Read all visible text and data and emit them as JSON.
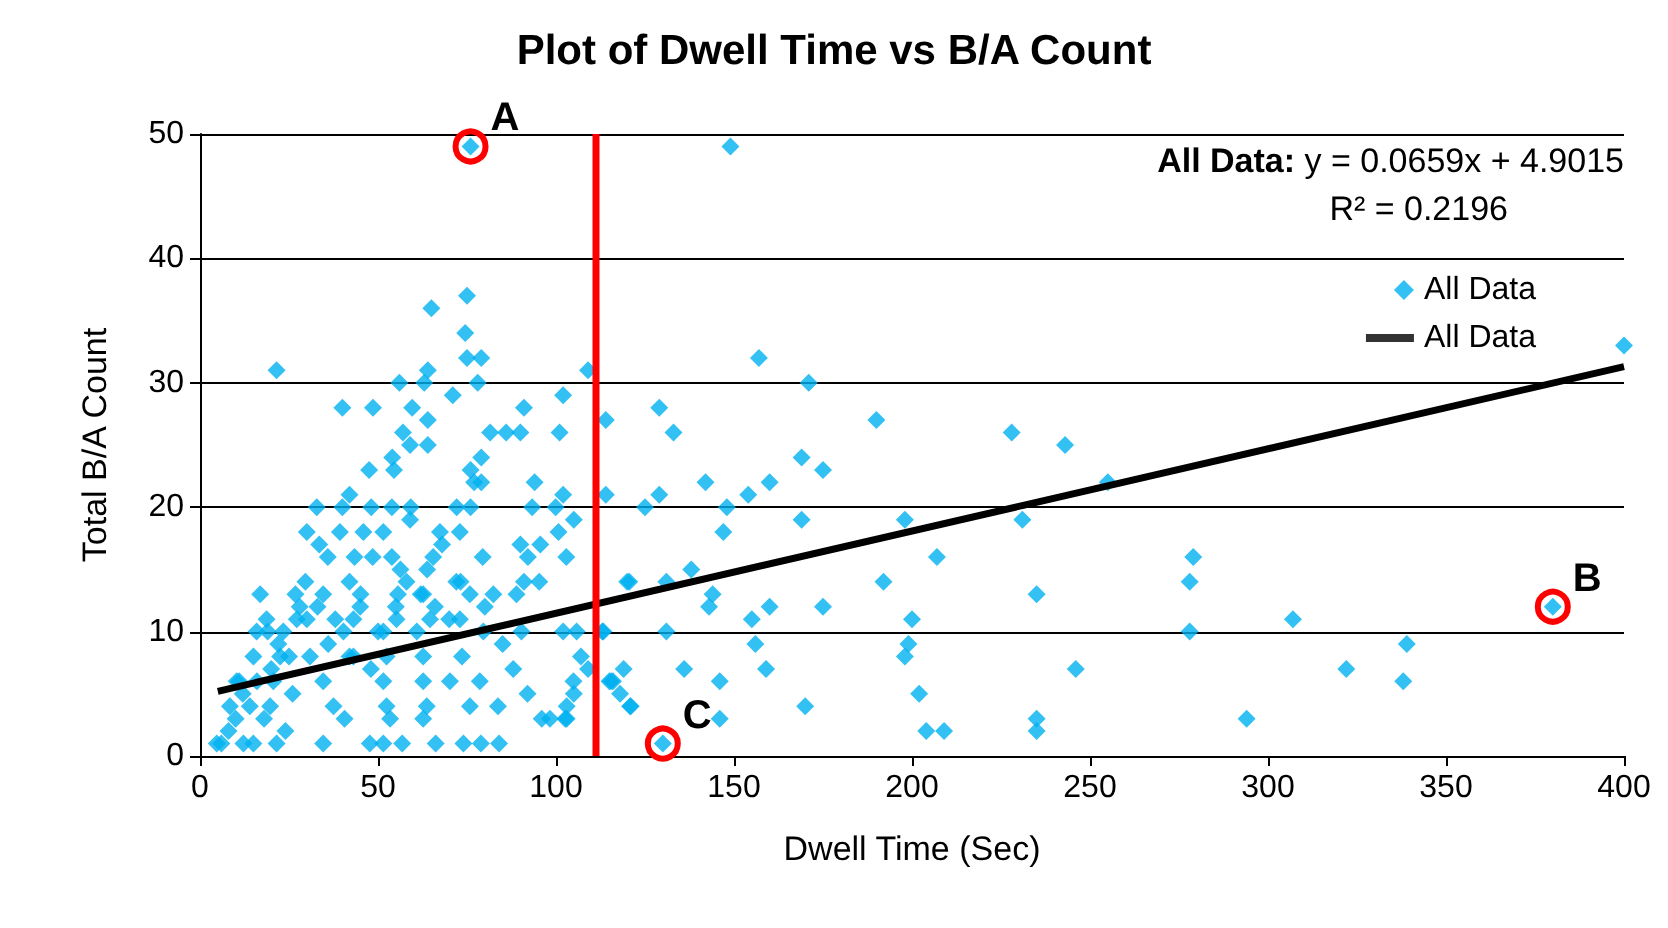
{
  "chart_data": {
    "type": "scatter",
    "title": "Plot of Dwell Time vs B/A Count",
    "xlabel": "Dwell Time (Sec)",
    "ylabel": "Total B/A Count",
    "xlim": [
      0,
      400
    ],
    "xticks": [
      0,
      50,
      100,
      150,
      200,
      250,
      300,
      350,
      400
    ],
    "ylim": [
      0,
      50
    ],
    "yticks": [
      0,
      10,
      20,
      30,
      40,
      50
    ],
    "grid": "y",
    "legend": "top right",
    "annotations": [
      {
        "text": "A",
        "x": 76,
        "y": 49
      },
      {
        "text": "B",
        "x": 380,
        "y": 12
      },
      {
        "text": "C",
        "x": 130,
        "y": 1
      },
      "All Data: y = 0.0659x + 4.9015",
      "R² = 0.2196"
    ],
    "ref_lines": [
      {
        "axis": "x",
        "value": 111,
        "color": "#ff0000"
      }
    ],
    "series": [
      {
        "name": "All Data",
        "type": "scatter",
        "marker": "diamond",
        "color": "#00b0f0",
        "x": [
          149,
          157,
          171,
          190,
          228,
          243,
          129,
          133,
          114,
          109,
          169,
          175,
          142,
          160,
          255,
          129,
          154,
          125,
          148,
          114,
          147,
          169,
          198,
          231,
          207,
          192,
          138,
          120,
          131,
          144,
          143,
          160,
          175,
          235,
          155,
          200,
          131,
          199,
          156,
          198,
          159,
          136,
          119,
          246,
          146,
          116,
          118,
          121,
          202,
          170,
          146,
          235,
          235,
          204,
          209,
          130,
          107,
          109,
          105,
          103,
          113,
          115,
          400,
          279,
          278,
          278,
          307,
          322,
          339,
          338,
          294,
          380,
          76,
          75,
          65,
          74.5,
          75,
          79,
          21.5,
          64,
          56,
          63,
          78,
          71,
          40,
          48.6,
          59.6,
          91,
          102,
          64,
          57,
          59,
          64,
          81.5,
          86,
          90,
          101,
          54,
          76,
          47.5,
          54.5,
          79,
          77,
          79,
          76,
          42,
          94,
          102,
          32.8,
          40,
          48.1,
          53.9,
          59.2,
          72.1,
          93.3,
          99.9,
          59,
          105,
          30,
          39.3,
          45.9,
          51.5,
          67.4,
          73,
          100.7,
          33.5,
          68,
          90,
          95.6,
          35.9,
          43.4,
          48.5,
          53.9,
          65.5,
          79.4,
          92.1,
          102.9,
          29.6,
          42,
          56.3,
          63.8,
          73.2,
          91,
          95.3,
          120.6,
          16.9,
          26.8,
          34.6,
          45.1,
          55.6,
          62.7,
          75.8,
          82.4,
          88.9,
          18.7,
          27.2,
          43.1,
          55.2,
          64.6,
          73,
          15.9,
          23.4,
          40.3,
          51.5,
          60.9,
          79.6,
          90.3,
          102,
          105.8,
          113.3,
          15,
          22.5,
          30.9,
          43.1,
          52.4,
          62.7,
          73.6,
          10.3,
          20.6,
          34.6,
          51.5,
          62.7,
          70.2,
          78.6,
          104.9,
          115.5,
          8.4,
          19.7,
          37.5,
          52.4,
          63.7,
          75.8,
          83.7,
          103,
          120.8,
          98.3,
          102.6,
          62.7,
          53.4,
          40.6,
          4.7,
          12.2,
          21.5,
          34.6,
          47.7,
          51.5,
          56.8,
          66.2,
          74,
          78.9,
          84,
          8,
          10,
          12,
          14,
          16,
          18,
          20,
          22,
          25,
          28,
          30,
          24,
          15,
          6,
          11,
          19,
          26,
          33,
          36,
          38,
          42,
          45,
          48,
          50,
          55,
          58,
          62,
          66,
          70,
          72,
          80,
          85,
          88,
          92,
          96
        ],
        "values": [
          49,
          32,
          30,
          27,
          26,
          25,
          28,
          26,
          27,
          31,
          24,
          23,
          22,
          22,
          22,
          21,
          21,
          20,
          20,
          21,
          18,
          19,
          19,
          19,
          16,
          14,
          15,
          14,
          14,
          13,
          12,
          12,
          12,
          13,
          11,
          11,
          10,
          9,
          9,
          8,
          7,
          7,
          7,
          7,
          6,
          6,
          5,
          4,
          5,
          4,
          3,
          3,
          2,
          2,
          2,
          1,
          8,
          7,
          5,
          3,
          10,
          6,
          33,
          16,
          14,
          10,
          11,
          7,
          9,
          6,
          3,
          12,
          49,
          37,
          36,
          34,
          32,
          32,
          31,
          31,
          30,
          30,
          30,
          29,
          28,
          28,
          28,
          28,
          29,
          27,
          26,
          25,
          25,
          26,
          26,
          26,
          26,
          24,
          23,
          23,
          23,
          24,
          22,
          22,
          20,
          21,
          22,
          21,
          20,
          20,
          20,
          20,
          20,
          20,
          20,
          20,
          19,
          19,
          18,
          18,
          18,
          18,
          18,
          18,
          18,
          17,
          17,
          17,
          17,
          16,
          16,
          16,
          16,
          16,
          16,
          16,
          16,
          14,
          14,
          15,
          15,
          14,
          14,
          14,
          14,
          13,
          13,
          13,
          13,
          13,
          13,
          13,
          13,
          13,
          11,
          11,
          11,
          11,
          11,
          11,
          10,
          10,
          10,
          10,
          10,
          10,
          10,
          10,
          10,
          10,
          8,
          8,
          8,
          8,
          8,
          8,
          8,
          6,
          6,
          6,
          6,
          6,
          6,
          6,
          6,
          6,
          4,
          4,
          4,
          4,
          4,
          4,
          4,
          4,
          4,
          3,
          3,
          3,
          3,
          3,
          1,
          1,
          1,
          1,
          1,
          1,
          1,
          1,
          1,
          1,
          1,
          2,
          3,
          5,
          4,
          6,
          3,
          7,
          9,
          8,
          12,
          11,
          2,
          1,
          1,
          6,
          10,
          5,
          12,
          9,
          11,
          8,
          12,
          7,
          10,
          12,
          14,
          13,
          12,
          11,
          14,
          12,
          9,
          7,
          5,
          3
        ]
      },
      {
        "name": "All Data",
        "type": "line",
        "marker": "none",
        "color": "#000000",
        "x": [
          5,
          400
        ],
        "values": [
          5.2,
          31.3
        ]
      }
    ]
  }
}
